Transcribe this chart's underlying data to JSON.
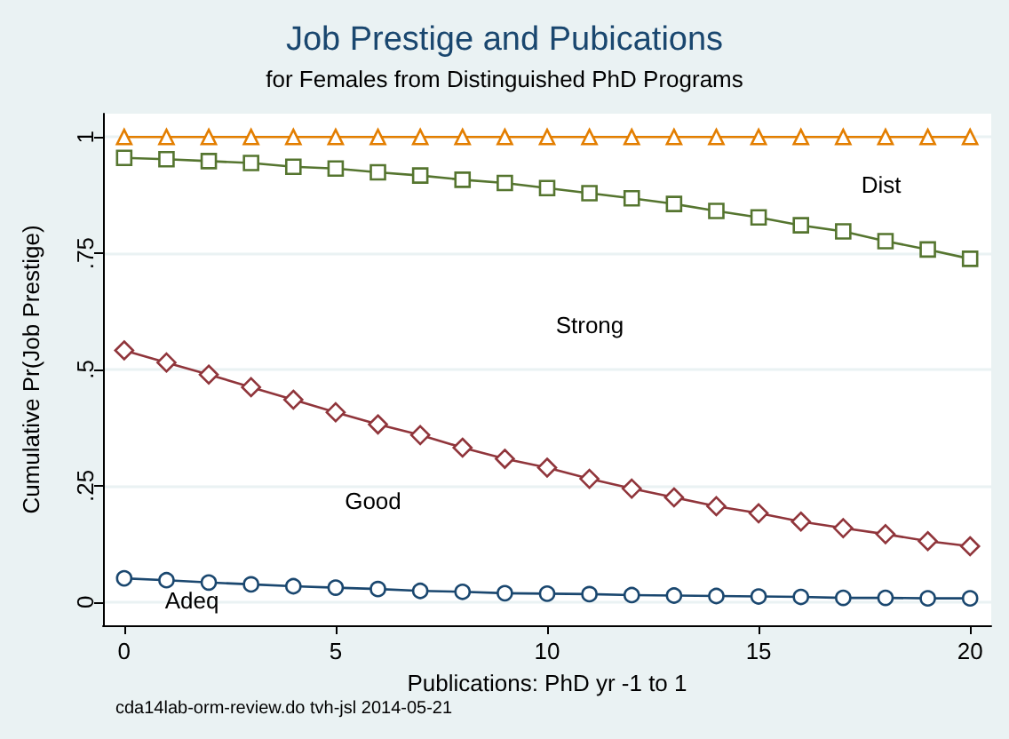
{
  "chart_data": {
    "type": "line",
    "title": "Job Prestige and Pubications",
    "subtitle": "for Females from Distinguished PhD Programs",
    "xlabel": "Publications: PhD yr -1 to 1",
    "ylabel": "Cumulative Pr(Job Prestige)",
    "x": [
      0,
      1,
      2,
      3,
      4,
      5,
      6,
      7,
      8,
      9,
      10,
      11,
      12,
      13,
      14,
      15,
      16,
      17,
      18,
      19,
      20
    ],
    "series": [
      {
        "color": "#1a476f",
        "marker": "circle",
        "values": [
          0.051,
          0.047,
          0.042,
          0.038,
          0.034,
          0.031,
          0.028,
          0.024,
          0.022,
          0.019,
          0.018,
          0.017,
          0.015,
          0.014,
          0.013,
          0.012,
          0.011,
          0.009,
          0.009,
          0.008,
          0.008
        ]
      },
      {
        "color": "#90353b",
        "marker": "diamond",
        "values": [
          0.541,
          0.515,
          0.489,
          0.462,
          0.435,
          0.408,
          0.382,
          0.359,
          0.332,
          0.308,
          0.289,
          0.265,
          0.244,
          0.225,
          0.206,
          0.191,
          0.173,
          0.159,
          0.146,
          0.131,
          0.12
        ]
      },
      {
        "color": "#55752f",
        "marker": "square",
        "values": [
          0.955,
          0.952,
          0.948,
          0.944,
          0.936,
          0.932,
          0.924,
          0.917,
          0.908,
          0.901,
          0.89,
          0.879,
          0.868,
          0.856,
          0.841,
          0.827,
          0.81,
          0.797,
          0.776,
          0.758,
          0.738
        ]
      },
      {
        "color": "#e37e00",
        "marker": "triangle",
        "values": [
          1,
          1,
          1,
          1,
          1,
          1,
          1,
          1,
          1,
          1,
          1,
          1,
          1,
          1,
          1,
          1,
          1,
          1,
          1,
          1,
          1
        ]
      }
    ],
    "xlim": [
      -0.5,
      20.5
    ],
    "xticks": [
      0,
      5,
      10,
      15,
      20
    ],
    "ylim": [
      -0.05,
      1.05
    ],
    "yticks": [
      0,
      {
        "value": 0.25,
        "label": ".25"
      },
      {
        "value": 0.5,
        "label": ".5"
      },
      {
        "value": 0.75,
        "label": ".75"
      },
      1
    ],
    "grid": "y",
    "line_style": "solid",
    "annotations": [
      "Dist",
      "Strong",
      "Good",
      "Adeq",
      "cda14lab-orm-review.do tvh-jsl 2014-05-21"
    ]
  }
}
